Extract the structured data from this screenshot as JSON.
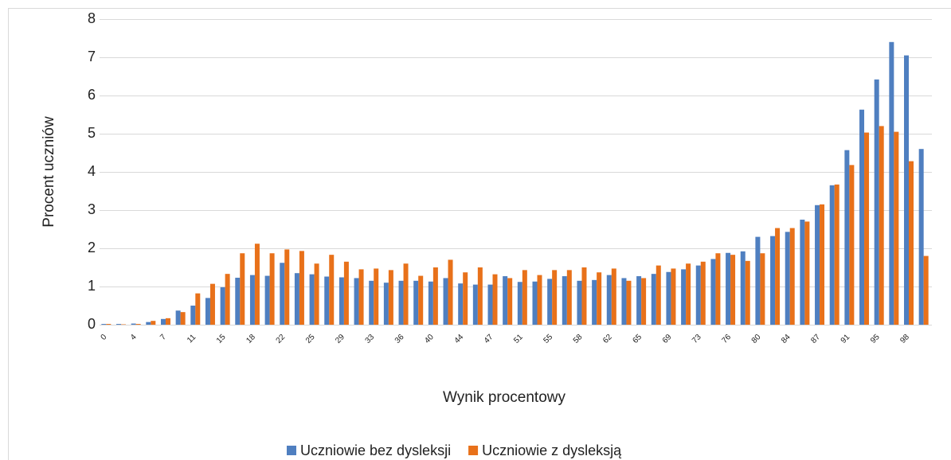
{
  "chart_data": {
    "type": "bar",
    "x_label": "Wynik procentowy",
    "y_label": "Procent uczniów",
    "categories": [
      "0",
      null,
      "4",
      null,
      "7",
      null,
      "11",
      null,
      "15",
      null,
      "18",
      null,
      "22",
      null,
      "25",
      null,
      "29",
      null,
      "33",
      null,
      "36",
      null,
      "40",
      null,
      "44",
      null,
      "47",
      null,
      "51",
      null,
      "55",
      null,
      "58",
      null,
      "62",
      null,
      "65",
      null,
      "69",
      null,
      "73",
      null,
      "76",
      null,
      "80",
      null,
      "84",
      null,
      "87",
      null,
      "91",
      null,
      "95",
      null,
      "98",
      null
    ],
    "series": [
      {
        "name": "Uczniowie bez dysleksji",
        "color": "#4f7fc0",
        "values": [
          0.02,
          0.02,
          0.03,
          0.07,
          0.15,
          0.37,
          0.5,
          0.7,
          0.98,
          1.23,
          1.3,
          1.28,
          1.62,
          1.35,
          1.32,
          1.26,
          1.24,
          1.22,
          1.15,
          1.1,
          1.15,
          1.15,
          1.13,
          1.22,
          1.08,
          1.05,
          1.05,
          1.27,
          1.12,
          1.13,
          1.2,
          1.27,
          1.15,
          1.17,
          1.3,
          1.22,
          1.27,
          1.33,
          1.38,
          1.45,
          1.55,
          1.72,
          1.88,
          1.92,
          2.3,
          2.32,
          2.43,
          2.75,
          3.13,
          3.65,
          4.57,
          5.63,
          6.42,
          7.4,
          7.05,
          4.6
        ]
      },
      {
        "name": "Uczniowie z dysleksją",
        "color": "#e8711a",
        "values": [
          0.02,
          0.01,
          0.02,
          0.1,
          0.17,
          0.33,
          0.82,
          1.07,
          1.33,
          1.87,
          2.12,
          1.87,
          1.97,
          1.93,
          1.6,
          1.83,
          1.65,
          1.45,
          1.47,
          1.43,
          1.6,
          1.28,
          1.5,
          1.7,
          1.37,
          1.5,
          1.32,
          1.22,
          1.43,
          1.3,
          1.43,
          1.43,
          1.5,
          1.37,
          1.47,
          1.15,
          1.22,
          1.55,
          1.47,
          1.6,
          1.65,
          1.87,
          1.83,
          1.67,
          1.87,
          2.53,
          2.53,
          2.7,
          3.15,
          3.67,
          4.18,
          5.03,
          5.2,
          5.05,
          4.28,
          1.8
        ]
      }
    ],
    "ylim": [
      0,
      8
    ],
    "yticks": [
      0,
      1,
      2,
      3,
      4,
      5,
      6,
      7,
      8
    ],
    "grid": true
  }
}
